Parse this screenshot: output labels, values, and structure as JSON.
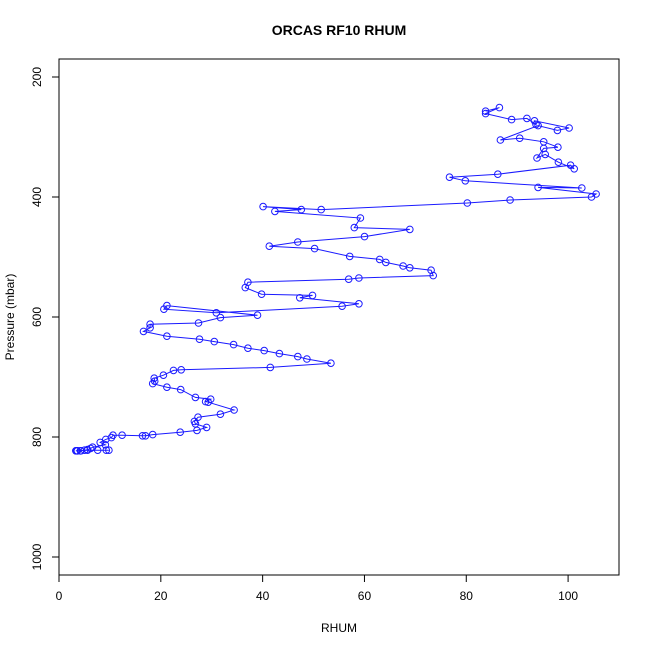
{
  "chart_data": {
    "type": "scatter",
    "title": "ORCAS RF10 RHUM",
    "xlabel": "RHUM",
    "ylabel": "Pressure (mbar)",
    "xlim": [
      0,
      110
    ],
    "ylim": [
      1030,
      170
    ],
    "y_reversed": true,
    "x_ticks": [
      0,
      20,
      40,
      60,
      80,
      100
    ],
    "y_ticks": [
      200,
      400,
      600,
      800,
      1000
    ],
    "grid": false,
    "legend": "none",
    "colors": {
      "series": "#1a1aff"
    },
    "series": [
      {
        "style": "line+points",
        "x": [
          83.8,
          86.5,
          83.8,
          88.9,
          91.9,
          93.7,
          93.4,
          100.2,
          97.9,
          94.1,
          86.7,
          90.5,
          95.2,
          98.0,
          95.2,
          93.9,
          95.5,
          98.1,
          101.2,
          100.5,
          86.2,
          76.7,
          79.8,
          102.7,
          94.1,
          105.5,
          104.6,
          88.6,
          80.2,
          51.5,
          40.1,
          47.6,
          42.4,
          59.2,
          58.0,
          68.9,
          60.0,
          46.9,
          41.3,
          50.2,
          57.1,
          63.0,
          64.2,
          67.6,
          68.9,
          73.1,
          73.5,
          58.9,
          56.9,
          37.1,
          36.6,
          39.8,
          49.8,
          47.3,
          58.9,
          55.6,
          30.9,
          20.6,
          21.2,
          39.0,
          31.7,
          27.4,
          17.9,
          17.9,
          16.6,
          21.2,
          27.6,
          30.5,
          34.3,
          37.1,
          40.3,
          43.3,
          46.9,
          48.7,
          53.4,
          41.5,
          24.0,
          22.5,
          20.5,
          18.7,
          18.8,
          18.4,
          21.2,
          23.9,
          26.8,
          29.8,
          28.8,
          29.3,
          34.4,
          31.7,
          27.3,
          26.6,
          26.8,
          29.0,
          27.1,
          23.8,
          18.4,
          17.0,
          16.4,
          12.4,
          10.6,
          10.3,
          9.2,
          8.1,
          9.1,
          6.6,
          6.2,
          5.6,
          5.0,
          4.2,
          3.6,
          3.3,
          3.6,
          3.4,
          4.3,
          5.6,
          7.6,
          9.3,
          9.8
        ],
        "y": [
          257,
          251,
          261,
          271,
          269,
          279,
          273,
          285,
          289,
          281,
          305,
          302,
          308,
          317,
          319,
          335,
          329,
          342,
          353,
          347,
          362,
          367,
          373,
          385,
          384,
          395,
          400,
          405,
          410,
          421,
          416,
          421,
          424,
          435,
          451,
          454,
          466,
          475,
          482,
          486,
          499,
          504,
          509,
          515,
          518,
          522,
          531,
          535,
          537,
          542,
          551,
          562,
          564,
          568,
          578,
          582,
          593,
          587,
          581,
          597,
          601,
          610,
          612,
          618,
          624,
          632,
          637,
          641,
          646,
          652,
          656,
          661,
          666,
          670,
          677,
          684,
          688,
          689,
          697,
          702,
          707,
          711,
          717,
          721,
          734,
          737,
          741,
          742,
          755,
          762,
          767,
          774,
          778,
          784,
          789,
          792,
          796,
          798,
          798,
          797,
          797,
          801,
          804,
          809,
          813,
          817,
          819,
          821,
          822,
          823,
          823,
          823,
          823,
          823,
          823,
          822,
          822,
          822,
          822
        ]
      }
    ]
  }
}
